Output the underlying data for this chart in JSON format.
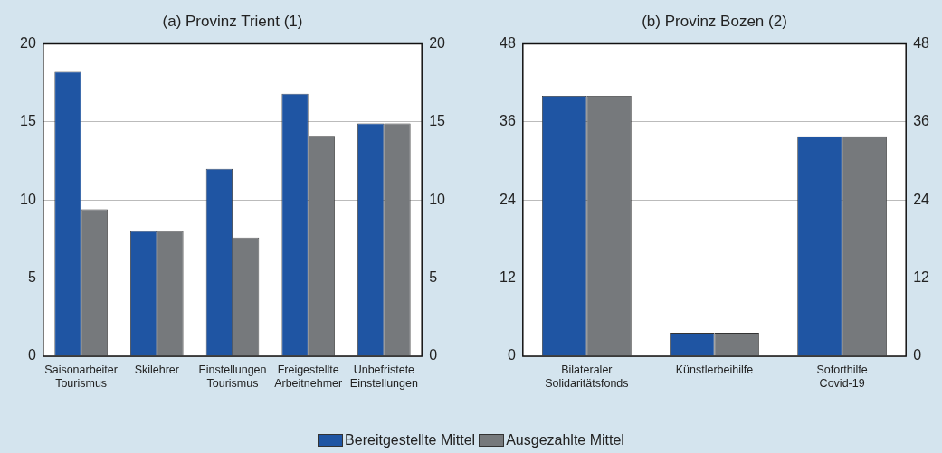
{
  "chart_data": [
    {
      "type": "bar",
      "title": "(a) Provinz Trient (1)",
      "categories": [
        "Saisonarbeiter Tourismus",
        "Skilehrer",
        "Einstellungen Tourismus",
        "Freigestellte Arbeitnehmer",
        "Unbefristete Einstellungen"
      ],
      "series": [
        {
          "name": "Bereitgestellte Mittel",
          "color": "#1f55a3",
          "values": [
            18.2,
            8.0,
            12.0,
            16.8,
            14.9
          ]
        },
        {
          "name": "Ausgezahlte Mittel",
          "color": "#76797c",
          "values": [
            9.4,
            8.0,
            7.6,
            14.1,
            14.9
          ]
        }
      ],
      "ylim": [
        0,
        20
      ],
      "yticks": [
        0,
        5,
        10,
        15,
        20
      ],
      "y2lim": [
        0,
        20
      ],
      "y2ticks": [
        0,
        5,
        10,
        15,
        20
      ],
      "grid": "y",
      "legend": "bottom"
    },
    {
      "type": "bar",
      "title": "(b) Provinz Bozen (2)",
      "categories": [
        "Bilateraler Solidaritätsfonds",
        "Künstlerbeihilfe",
        "Soforthilfe Covid-19"
      ],
      "series": [
        {
          "color": "#1f55a3",
          "values": [
            40.0,
            3.6,
            33.8
          ]
        },
        {
          "color": "#76797c",
          "values": [
            40.0,
            3.6,
            33.8
          ]
        }
      ],
      "ylim": [
        0,
        48
      ],
      "yticks": [
        0,
        12,
        24,
        36,
        48
      ],
      "y2lim": [
        0,
        48
      ],
      "y2ticks": [
        0,
        12,
        24,
        36,
        48
      ],
      "grid": "y"
    }
  ]
}
